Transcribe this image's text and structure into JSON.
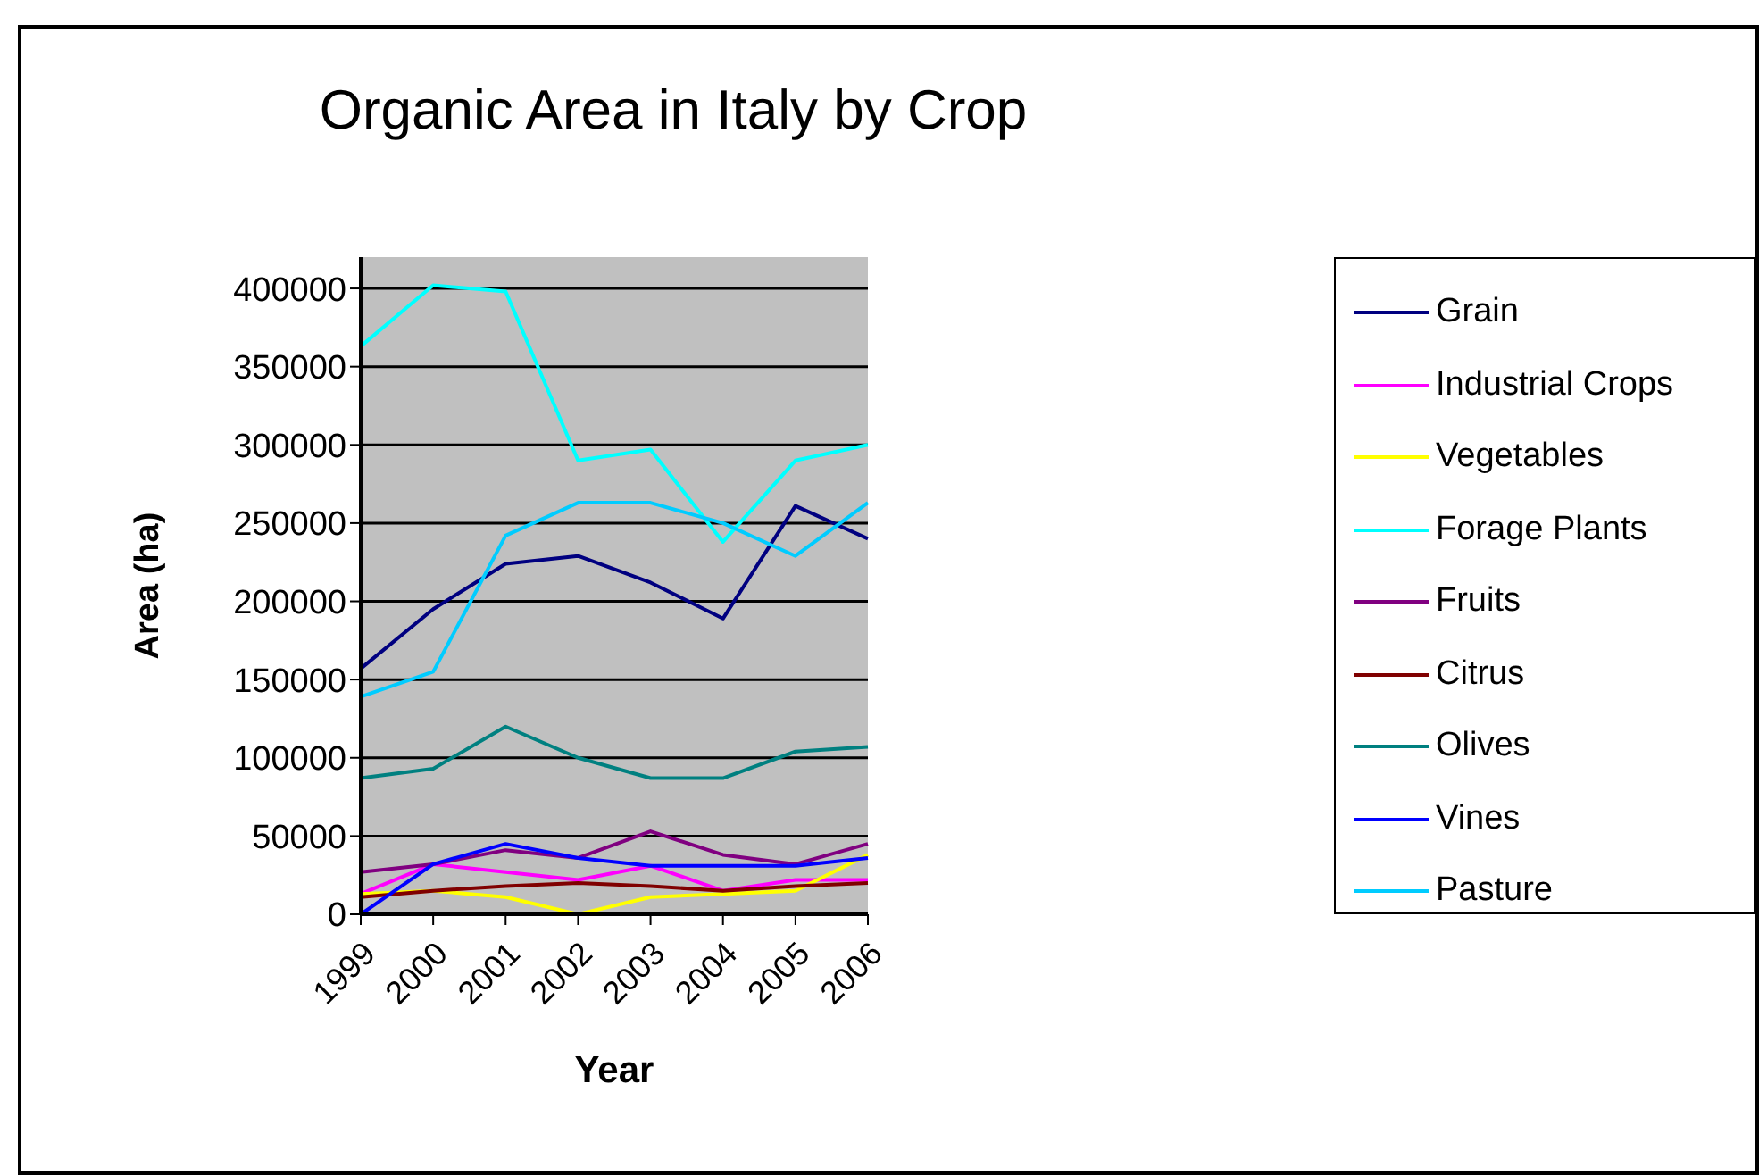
{
  "chart_data": {
    "type": "line",
    "title": "Organic Area in Italy by Crop",
    "xlabel": "Year",
    "ylabel": "Area (ha)",
    "categories": [
      "1999",
      "2000",
      "2001",
      "2002",
      "2003",
      "2004",
      "2005",
      "2006"
    ],
    "series": [
      {
        "name": "Grain",
        "color": "#000080",
        "values": [
          157000,
          195000,
          224000,
          229000,
          212000,
          189000,
          261000,
          240000
        ]
      },
      {
        "name": "Industrial Crops",
        "color": "#ff00ff",
        "values": [
          13000,
          32000,
          27000,
          22000,
          31000,
          15000,
          22000,
          22000
        ]
      },
      {
        "name": "Vegetables",
        "color": "#ffff00",
        "values": [
          13000,
          15000,
          11000,
          0,
          11000,
          13000,
          15000,
          38000
        ]
      },
      {
        "name": "Forage Plants",
        "color": "#00ffff",
        "values": [
          363000,
          402000,
          398000,
          290000,
          297000,
          238000,
          290000,
          300000
        ]
      },
      {
        "name": "Fruits",
        "color": "#800080",
        "values": [
          27000,
          32000,
          41000,
          36000,
          53000,
          38000,
          32000,
          45000
        ]
      },
      {
        "name": "Citrus",
        "color": "#800000",
        "values": [
          11000,
          15000,
          18000,
          20000,
          18000,
          15000,
          18000,
          20000
        ]
      },
      {
        "name": "Olives",
        "color": "#008080",
        "values": [
          87000,
          93000,
          120000,
          100000,
          87000,
          87000,
          104000,
          107000
        ]
      },
      {
        "name": "Vines",
        "color": "#0000ff",
        "values": [
          0,
          32000,
          45000,
          36000,
          31000,
          31000,
          31000,
          36000
        ]
      },
      {
        "name": "Pasture",
        "color": "#00ccff",
        "values": [
          139000,
          155000,
          242000,
          263000,
          263000,
          250000,
          229000,
          263000
        ]
      }
    ],
    "ylim": [
      0,
      420000
    ],
    "yticks": [
      0,
      50000,
      100000,
      150000,
      200000,
      250000,
      300000,
      350000,
      400000
    ],
    "grid": "y",
    "legend": "right",
    "marker": "none",
    "line_style": "solid"
  }
}
